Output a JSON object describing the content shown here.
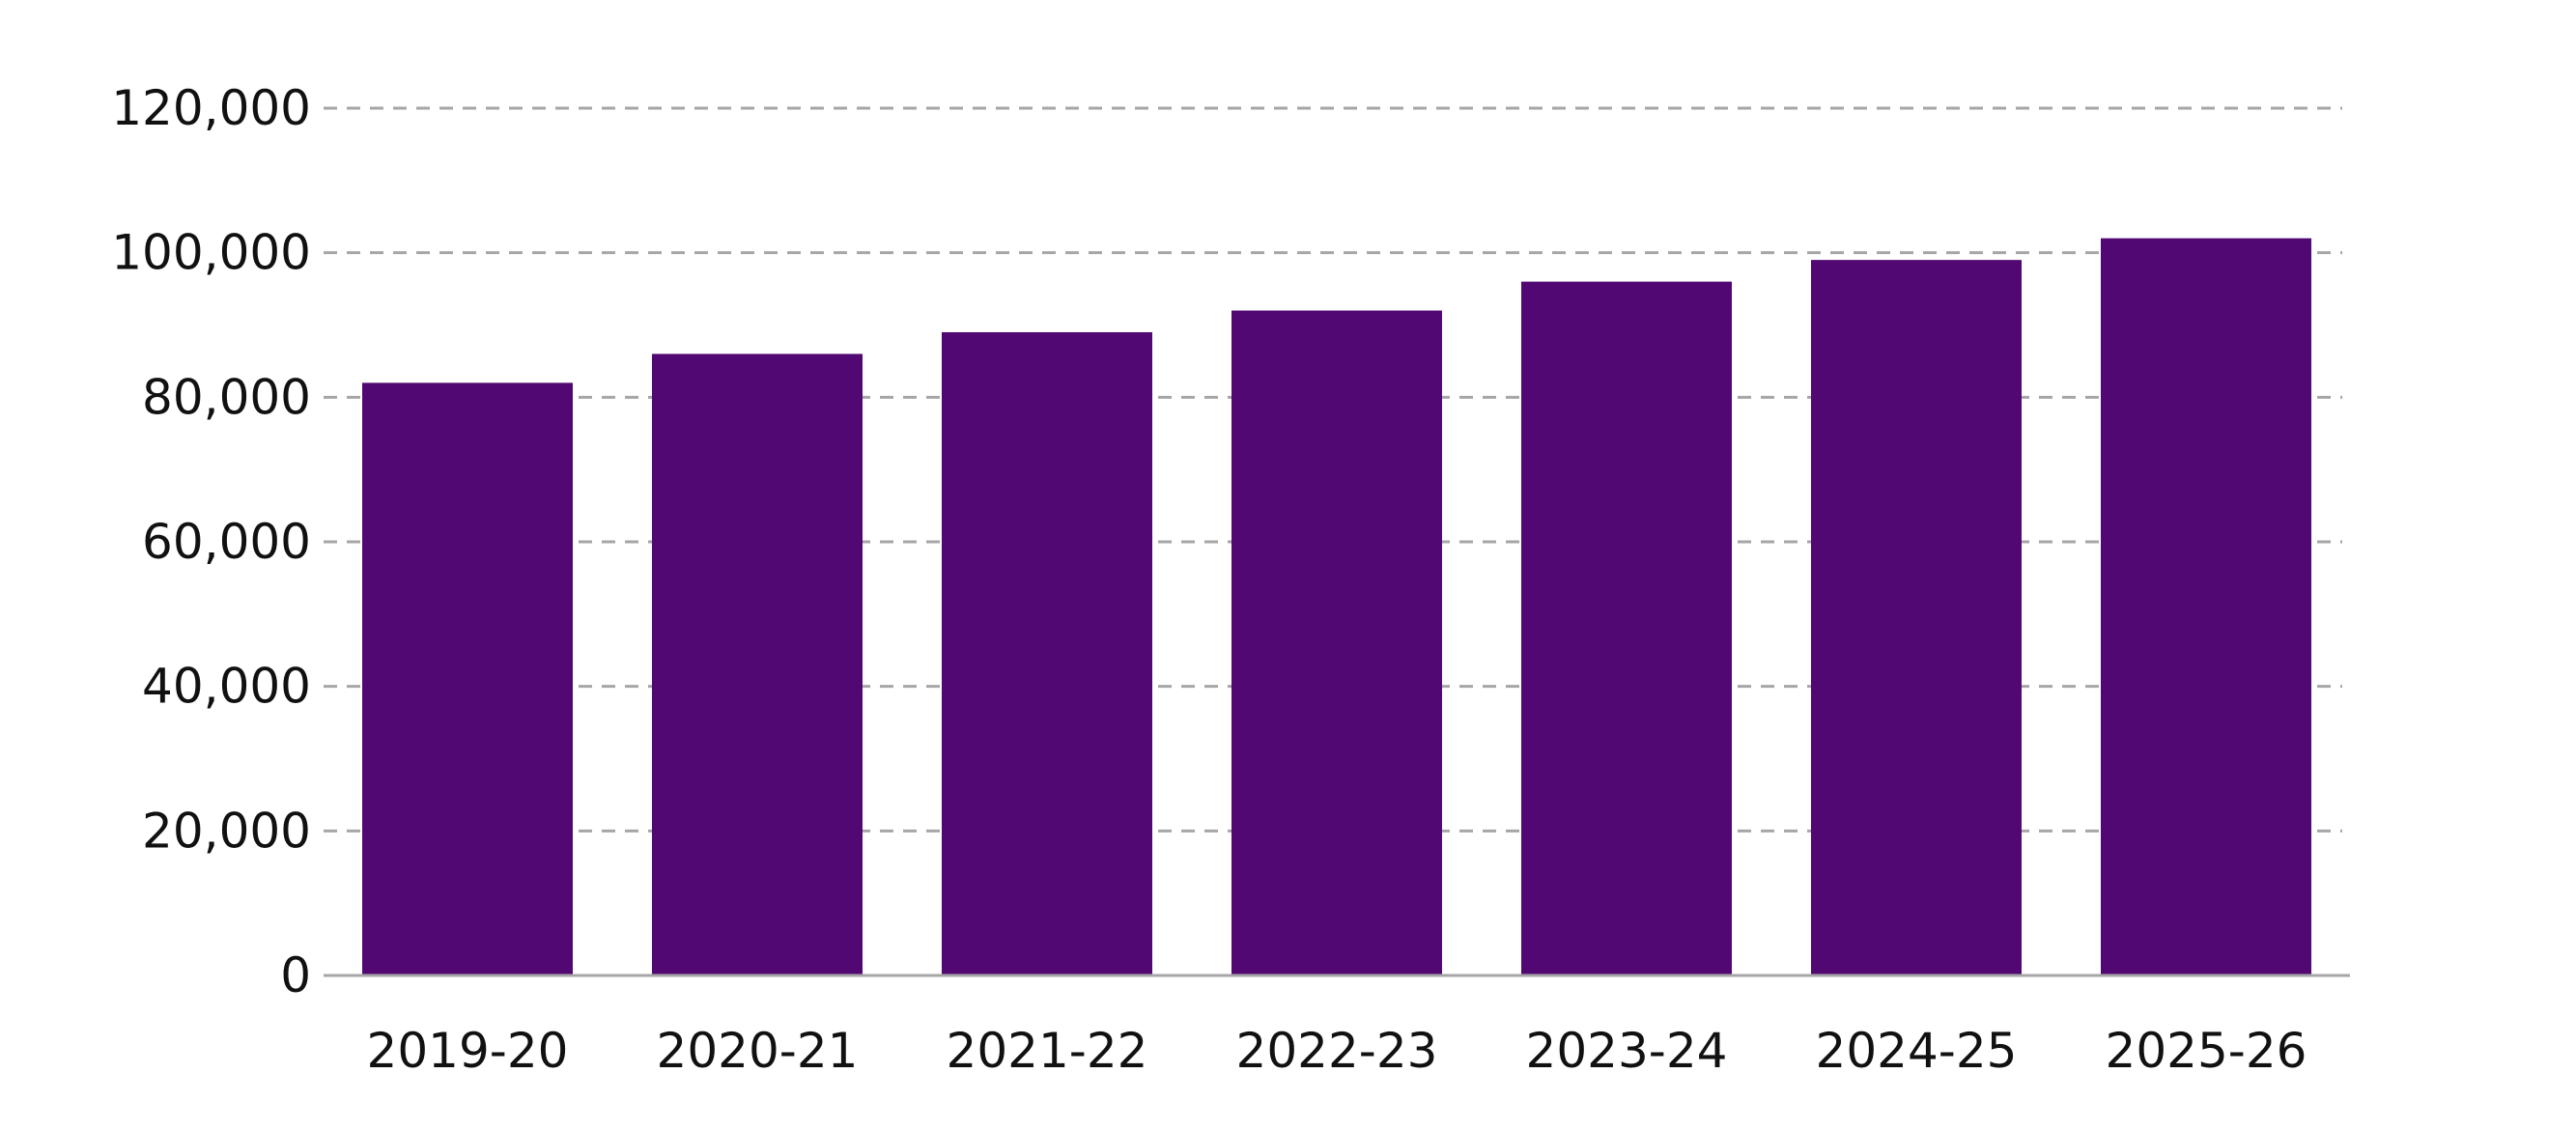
{
  "chart_data": {
    "type": "bar",
    "title": "",
    "xlabel": "",
    "ylabel": "",
    "categories": [
      "2019-20",
      "2020-21",
      "2021-22",
      "2022-23",
      "2023-24",
      "2024-25",
      "2025-26"
    ],
    "values": [
      82000,
      86000,
      89000,
      92000,
      96000,
      99000,
      102000
    ],
    "ylim": [
      0,
      120000
    ],
    "yticks": [
      0,
      20000,
      40000,
      60000,
      80000,
      100000,
      120000
    ],
    "ytick_labels": [
      "0",
      "20,000",
      "40,000",
      "60,000",
      "80,000",
      "100,000",
      "120,000"
    ],
    "grid": true,
    "legend": "none",
    "colors": {
      "bar": "#520872",
      "grid": "#a6a6a6",
      "axis": "#a6a6a6",
      "text": "#111111"
    }
  }
}
